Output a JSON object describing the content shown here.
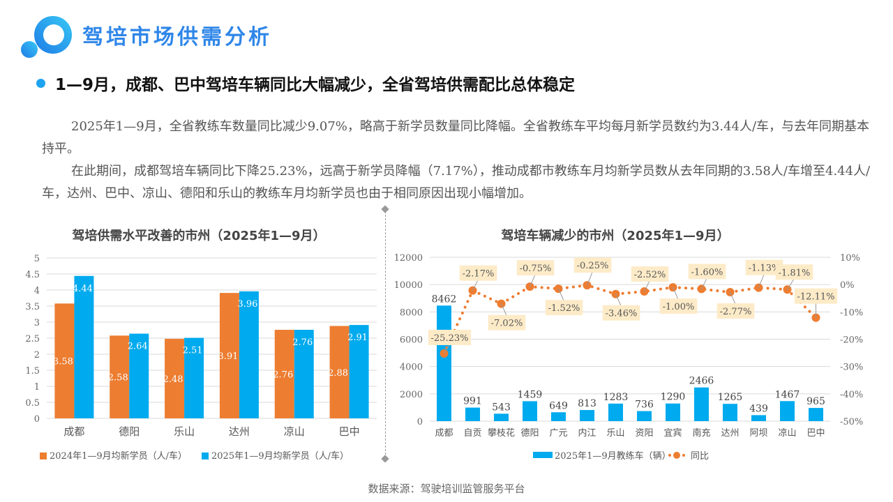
{
  "header": {
    "title": "驾培市场供需分析",
    "subheading": "1—9月，成都、巴中驾培车辆同比大幅减少，全省驾培供需配比总体稳定"
  },
  "paragraphs": [
    "2025年1—9月，全省教练车数量同比减少9.07%，略高于新学员数量同比降幅。全省教练车平均每月新学员数约为3.44人/车，与去年同期基本持平。",
    "在此期间，成都驾培车辆同比下降25.23%，远高于新学员降幅（7.17%），推动成都市教练车月均新学员数从去年同期的3.58人/车增至4.44人/车，达州、巴中、凉山、德阳和乐山的教练车月均新学员也由于相同原因出现小幅增加。"
  ],
  "footer": {
    "source": "数据来源：驾驶培训监管服务平台"
  },
  "colors": {
    "orange": "#ed7d31",
    "blue": "#00aaee",
    "label_bg": "#fdebc8",
    "brand": "#2f86e8"
  },
  "chart_data": [
    {
      "type": "bar",
      "title": "驾培供需水平改善的市州（2025年1—9月）",
      "categories": [
        "成都",
        "德阳",
        "乐山",
        "达州",
        "凉山",
        "巴中"
      ],
      "series": [
        {
          "name": "2024年1—9月均新学员（人/车）",
          "values": [
            3.58,
            2.58,
            2.48,
            3.91,
            2.76,
            2.88
          ],
          "labels": [
            "3.58",
            "2.58",
            "2.48",
            "3.91",
            "2.76",
            "2.88"
          ]
        },
        {
          "name": "2025年1—9月均新学员（人/车）",
          "values": [
            4.44,
            2.64,
            2.51,
            3.96,
            2.76,
            2.91
          ],
          "labels": [
            "4.44",
            "2.64",
            "2.51",
            "3.96",
            "2.76",
            "2.91"
          ]
        }
      ],
      "ylim": [
        0,
        5
      ],
      "yticks": [
        "0",
        "0.5",
        "1",
        "1.5",
        "2",
        "2.5",
        "3",
        "3.5",
        "4",
        "4.5",
        "5"
      ],
      "grid": true,
      "legend": "bottom"
    },
    {
      "type": "bar+line",
      "title": "驾培车辆减少的市州（2025年1—9月）",
      "categories": [
        "成都",
        "自贡",
        "攀枝花",
        "德阳",
        "广元",
        "内江",
        "乐山",
        "资阳",
        "宜宾",
        "南充",
        "达州",
        "阿坝",
        "凉山",
        "巴中"
      ],
      "series": [
        {
          "name": "2025年1—9月教练车（辆）",
          "axis": "left",
          "values": [
            8462,
            991,
            543,
            1459,
            649,
            813,
            1283,
            736,
            1290,
            2466,
            1265,
            439,
            1467,
            965
          ],
          "labels": [
            "8462",
            "991",
            "543",
            "1459",
            "649",
            "813",
            "1283",
            "736",
            "1290",
            "2466",
            "1265",
            "439",
            "1467",
            "965"
          ]
        },
        {
          "name": "同比",
          "axis": "right",
          "values": [
            -25.23,
            -2.17,
            -7.02,
            -0.75,
            -1.52,
            -0.25,
            -3.46,
            -2.52,
            -1.0,
            -1.6,
            -2.77,
            -1.13,
            -1.81,
            -12.11
          ],
          "labels": [
            "-25.23%",
            "-2.17%",
            "-7.02%",
            "-0.75%",
            "-1.52%",
            "-0.25%",
            "-3.46%",
            "-2.52%",
            "-1.00%",
            "-1.60%",
            "-2.77%",
            "-1.13%",
            "-1.81%",
            "-12.11%"
          ]
        }
      ],
      "ylim_left": [
        0,
        12000
      ],
      "yticks_left": [
        "0",
        "2000",
        "4000",
        "6000",
        "8000",
        "10000",
        "12000"
      ],
      "ylim_right": [
        -50,
        10
      ],
      "yticks_right": [
        "-50%",
        "-40%",
        "-30%",
        "-20%",
        "-10%",
        "0%",
        "10%"
      ],
      "grid": true,
      "legend": "bottom"
    }
  ]
}
